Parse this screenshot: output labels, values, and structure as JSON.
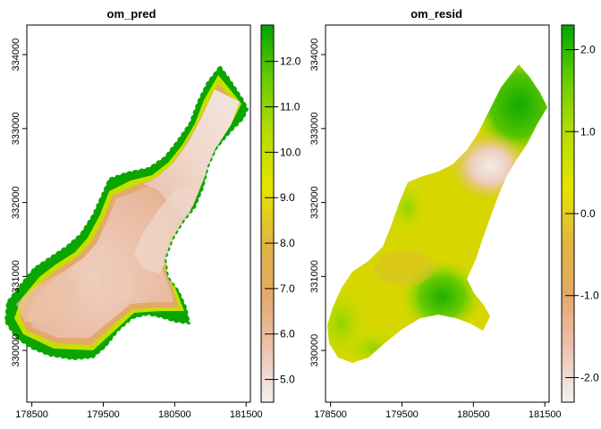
{
  "chart_data": [
    {
      "type": "heatmap",
      "title": "om_pred",
      "x_ticks": [
        "178500",
        "179500",
        "180500",
        "181500"
      ],
      "y_ticks": [
        "330000",
        "331000",
        "332000",
        "333000",
        "334000"
      ],
      "x_values": [
        178500,
        179500,
        180500,
        181500
      ],
      "y_values": [
        330000,
        331000,
        332000,
        333000,
        334000
      ],
      "xlim": [
        178430,
        181560
      ],
      "ylim": [
        329300,
        334400
      ],
      "legend": {
        "ticks": [
          "5.0",
          "6.0",
          "7.0",
          "8.0",
          "9.0",
          "10.0",
          "11.0",
          "12.0"
        ],
        "tick_values": [
          5,
          6,
          7,
          8,
          9,
          10,
          11,
          12
        ],
        "range": [
          4.5,
          12.8
        ],
        "colors": [
          "#f2f2f2",
          "#ecc3b0",
          "#e4a868",
          "#e1b640",
          "#e5e400",
          "#b5de00",
          "#6acc00",
          "#00a600"
        ]
      },
      "description_values": {
        "interior_level": 6.2,
        "band_level": 7.0,
        "edge_level": 12.0,
        "northeast_level": 5.0
      }
    },
    {
      "type": "heatmap",
      "title": "om_resid",
      "x_ticks": [
        "178500",
        "179500",
        "180500",
        "181500"
      ],
      "y_ticks": [
        "330000",
        "331000",
        "332000",
        "333000",
        "334000"
      ],
      "x_values": [
        178500,
        179500,
        180500,
        181500
      ],
      "y_values": [
        330000,
        331000,
        332000,
        333000,
        334000
      ],
      "xlim": [
        178430,
        181560
      ],
      "ylim": [
        329300,
        334400
      ],
      "legend": {
        "ticks": [
          "-2.0",
          "-1.0",
          "0.0",
          "1.0",
          "2.0"
        ],
        "tick_values": [
          -2,
          -1,
          0,
          1,
          2
        ],
        "range": [
          -2.3,
          2.3
        ],
        "colors": [
          "#f2f2f2",
          "#ecc3b0",
          "#e4a868",
          "#e1b640",
          "#e5e400",
          "#b5de00",
          "#6acc00",
          "#00a600"
        ]
      }
    }
  ]
}
